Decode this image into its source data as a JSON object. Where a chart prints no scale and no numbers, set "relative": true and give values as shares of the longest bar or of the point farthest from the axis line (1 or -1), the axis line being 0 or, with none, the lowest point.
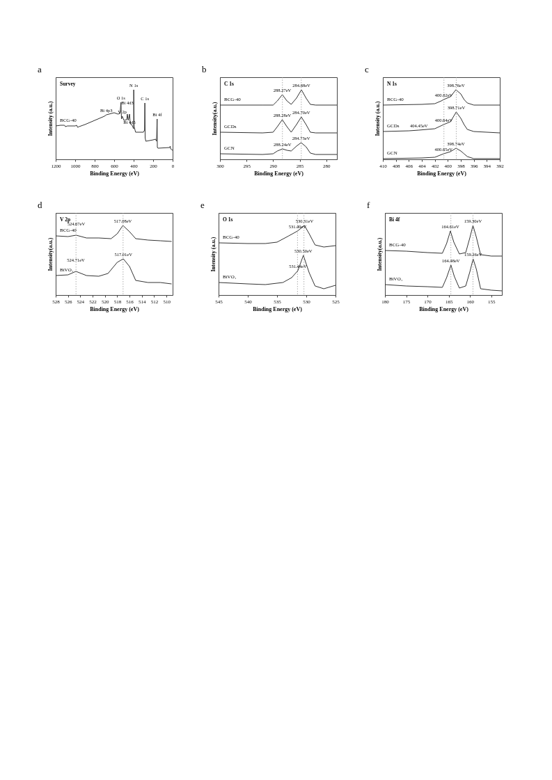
{
  "chart_data": [
    {
      "type": "line",
      "title": "a",
      "subtitle": "Survey",
      "xlabel": "Binding Energy (eV)",
      "ylabel": "Intensity (a.u.)",
      "relative": true,
      "xlim": [
        1200,
        0
      ],
      "xticks": [
        1200,
        1000,
        800,
        600,
        400,
        200,
        0
      ],
      "x": [
        1200,
        1150,
        1110,
        1100,
        1080,
        1000,
        985,
        975,
        960,
        900,
        800,
        700,
        680,
        600,
        560,
        540,
        530,
        525,
        517,
        500,
        470,
        465,
        455,
        442,
        435,
        420,
        400,
        399,
        395,
        380,
        300,
        288,
        285,
        282,
        275,
        200,
        175,
        165,
        159,
        157,
        150,
        30,
        25,
        20,
        0
      ],
      "series": [
        {
          "name": "BCG-40",
          "color": "#333333",
          "values": [
            0.48,
            0.49,
            0.49,
            0.47,
            0.48,
            0.48,
            0.49,
            0.46,
            0.47,
            0.5,
            0.56,
            0.62,
            0.64,
            0.67,
            0.65,
            0.66,
            0.82,
            0.58,
            0.62,
            0.56,
            0.57,
            0.65,
            0.56,
            0.65,
            0.51,
            0.5,
            0.44,
            1.0,
            0.47,
            0.39,
            0.39,
            0.42,
            0.81,
            0.31,
            0.26,
            0.28,
            0.29,
            0.26,
            0.58,
            0.17,
            0.16,
            0.17,
            0.19,
            0.15,
            0.13
          ]
        }
      ],
      "annotations": [
        {
          "text": "Bi 4p3",
          "x": 680,
          "y": 0.64
        },
        {
          "text": "O 1s",
          "x": 530,
          "y": 0.82
        },
        {
          "text": "V 2p",
          "x": 517,
          "y": 0.62
        },
        {
          "text": "Bi 4d3",
          "x": 465,
          "y": 0.65
        },
        {
          "text": "Bi 4d5",
          "x": 442,
          "y": 0.65
        },
        {
          "text": "N 1s",
          "x": 399,
          "y": 1.0
        },
        {
          "text": "C 1s",
          "x": 285,
          "y": 0.81
        },
        {
          "text": "Bi 4f",
          "x": 159,
          "y": 0.58
        }
      ]
    },
    {
      "type": "line",
      "title": "b",
      "subtitle": "C 1s",
      "xlabel": "Binding Energy (eV)",
      "ylabel": "Intensity(a.u.)",
      "relative": true,
      "xlim": [
        300,
        278
      ],
      "xticks": [
        300,
        295,
        290,
        285,
        280
      ],
      "series": [
        {
          "name": "BCG-40",
          "color": "#333333",
          "x": [
            300,
            292,
            290,
            289.2,
            288.27,
            287.4,
            286.6,
            285.6,
            284.68,
            283.8,
            283,
            282,
            278
          ],
          "values": [
            0.78,
            0.78,
            0.78,
            0.84,
            0.93,
            0.84,
            0.79,
            0.88,
            1.0,
            0.88,
            0.79,
            0.78,
            0.78
          ]
        },
        {
          "name": "GCDs",
          "color": "#333333",
          "x": [
            300,
            292,
            290,
            289.2,
            288.28,
            287.4,
            286.6,
            285.6,
            284.7,
            283.8,
            283,
            282,
            278
          ],
          "values": [
            0.39,
            0.38,
            0.39,
            0.47,
            0.57,
            0.47,
            0.39,
            0.5,
            0.61,
            0.5,
            0.39,
            0.38,
            0.38
          ]
        },
        {
          "name": "GCN",
          "color": "#333333",
          "x": [
            300,
            292,
            290,
            289.2,
            288.24,
            287.4,
            286.6,
            285.6,
            284.73,
            283.8,
            283,
            282,
            278
          ],
          "values": [
            0.08,
            0.07,
            0.08,
            0.12,
            0.15,
            0.13,
            0.12,
            0.19,
            0.24,
            0.18,
            0.09,
            0.07,
            0.07
          ]
        }
      ],
      "ref_lines": [
        {
          "axis": "x",
          "value": 288.25,
          "color": "#999999",
          "line_style": "dotted"
        },
        {
          "axis": "x",
          "value": 284.7,
          "color": "#999999",
          "line_style": "dotted"
        }
      ],
      "annotations": [
        {
          "text": "288.27eV",
          "x": 288.27,
          "y": 0.93
        },
        {
          "text": "284.68eV",
          "x": 284.68,
          "y": 1.0
        },
        {
          "text": "288.28eV",
          "x": 288.28,
          "y": 0.57
        },
        {
          "text": "284.70eV",
          "x": 284.7,
          "y": 0.61
        },
        {
          "text": "288.24eV",
          "x": 288.24,
          "y": 0.15
        },
        {
          "text": "284.73eV",
          "x": 284.73,
          "y": 0.24
        }
      ]
    },
    {
      "type": "line",
      "title": "c",
      "subtitle": "N 1s",
      "xlabel": "Binding Energy (eV)",
      "ylabel": "Intensity (a.u.)",
      "relative": true,
      "xlim": [
        410,
        392
      ],
      "xticks": [
        410,
        408,
        406,
        404,
        402,
        400,
        398,
        396,
        394,
        392
      ],
      "series": [
        {
          "name": "BCG-40",
          "color": "#333333",
          "x": [
            410,
            404,
            402,
            401,
            400.62,
            399.6,
            398.76,
            398,
            397.5,
            397,
            396,
            392
          ],
          "values": [
            0.78,
            0.79,
            0.8,
            0.84,
            0.86,
            0.9,
            1.0,
            0.94,
            0.86,
            0.81,
            0.78,
            0.78
          ]
        },
        {
          "name": "GCDs",
          "color": "#333333",
          "x": [
            410,
            406,
            404.45,
            402,
            400.64,
            399.6,
            398.71,
            398,
            397.5,
            397,
            396,
            392
          ],
          "values": [
            0.4,
            0.41,
            0.42,
            0.44,
            0.5,
            0.54,
            0.68,
            0.59,
            0.5,
            0.43,
            0.4,
            0.38
          ]
        },
        {
          "name": "GCN",
          "color": "#333333",
          "x": [
            410,
            404,
            402,
            400.65,
            399.6,
            398.74,
            398,
            397.5,
            397,
            396,
            392
          ],
          "values": [
            0.01,
            0.02,
            0.03,
            0.08,
            0.11,
            0.16,
            0.12,
            0.08,
            0.04,
            0.01,
            0.01
          ]
        }
      ],
      "ref_lines": [
        {
          "axis": "x",
          "value": 400.6,
          "color": "#999999",
          "line_style": "dotted"
        },
        {
          "axis": "x",
          "value": 398.7,
          "color": "#999999",
          "line_style": "dotted"
        }
      ],
      "annotations": [
        {
          "text": "400.62eV",
          "x": 400.62,
          "y": 0.86
        },
        {
          "text": "398.76eV",
          "x": 398.76,
          "y": 1.0
        },
        {
          "text": "404.45eV",
          "x": 404.45,
          "y": 0.42
        },
        {
          "text": "400.64eV",
          "x": 400.64,
          "y": 0.5
        },
        {
          "text": "398.71eV",
          "x": 398.71,
          "y": 0.68
        },
        {
          "text": "400.65eV",
          "x": 400.65,
          "y": 0.08
        },
        {
          "text": "398.74eV",
          "x": 398.74,
          "y": 0.16
        }
      ]
    },
    {
      "type": "line",
      "title": "d",
      "subtitle": "V 2p",
      "xlabel": "Binding Energy (eV)",
      "ylabel": "Intensity(a.u.)",
      "relative": true,
      "xlim": [
        528,
        509
      ],
      "xticks": [
        528,
        526,
        524,
        522,
        520,
        518,
        516,
        514,
        512,
        510
      ],
      "series": [
        {
          "name": "BCG-40",
          "color": "#333333",
          "x": [
            528,
            526,
            524.67,
            523,
            521,
            519,
            518,
            517.08,
            516,
            515,
            513,
            511,
            509.2
          ],
          "values": [
            0.85,
            0.84,
            0.86,
            0.82,
            0.82,
            0.81,
            0.88,
            1.0,
            0.91,
            0.81,
            0.79,
            0.78,
            0.77
          ]
        },
        {
          "name": "BiVO₄",
          "color": "#333333",
          "x": [
            528,
            526,
            524.71,
            523,
            521,
            519.5,
            518,
            517.01,
            516,
            515,
            513,
            511,
            509.2
          ],
          "values": [
            0.28,
            0.29,
            0.34,
            0.28,
            0.27,
            0.31,
            0.47,
            0.52,
            0.41,
            0.21,
            0.18,
            0.18,
            0.16
          ]
        }
      ],
      "ref_lines": [
        {
          "axis": "x",
          "value": 524.7,
          "color": "#999999",
          "line_style": "dotted"
        },
        {
          "axis": "x",
          "value": 517.05,
          "color": "#999999",
          "line_style": "dotted"
        }
      ],
      "annotations": [
        {
          "text": "524.67eV",
          "x": 524.67,
          "y": 0.86
        },
        {
          "text": "517.08eV",
          "x": 517.08,
          "y": 1.0
        },
        {
          "text": "524.71eV",
          "x": 524.71,
          "y": 0.34
        },
        {
          "text": "517.01eV",
          "x": 517.01,
          "y": 0.52
        }
      ]
    },
    {
      "type": "line",
      "title": "e",
      "subtitle": "O 1s",
      "xlabel": "Binding Energy (eV)",
      "ylabel": "Intensity (a.u.)",
      "relative": true,
      "xlim": [
        545,
        525
      ],
      "xticks": [
        545,
        540,
        535,
        530,
        525
      ],
      "series": [
        {
          "name": "BCG-40",
          "color": "#333333",
          "x": [
            545,
            540,
            537,
            535,
            533,
            531.49,
            530.31,
            529.5,
            528.5,
            527,
            525
          ],
          "values": [
            0.75,
            0.74,
            0.74,
            0.76,
            0.85,
            0.92,
            1.0,
            0.88,
            0.72,
            0.69,
            0.71
          ]
        },
        {
          "name": "BiVO₄",
          "color": "#333333",
          "x": [
            545,
            540,
            537,
            534,
            532.5,
            531.44,
            530.5,
            529.5,
            528.5,
            527,
            525
          ],
          "values": [
            0.18,
            0.16,
            0.15,
            0.18,
            0.25,
            0.35,
            0.57,
            0.32,
            0.13,
            0.09,
            0.14
          ]
        }
      ],
      "ref_lines": [
        {
          "axis": "x",
          "value": 531.5,
          "color": "#999999",
          "line_style": "dotted"
        },
        {
          "axis": "x",
          "value": 530.4,
          "color": "#999999",
          "line_style": "dotted"
        }
      ],
      "annotations": [
        {
          "text": "531.49eV",
          "x": 531.49,
          "y": 0.92
        },
        {
          "text": "530.31eV",
          "x": 530.31,
          "y": 1.0
        },
        {
          "text": "531.44eV",
          "x": 531.44,
          "y": 0.35
        },
        {
          "text": "530.50eV",
          "x": 530.5,
          "y": 0.57
        }
      ]
    },
    {
      "type": "line",
      "title": "f",
      "subtitle": "Bi 4f",
      "xlabel": "Binding Energy (eV)",
      "ylabel": "Intensity(a.u.)",
      "relative": true,
      "xlim": [
        180,
        152.5
      ],
      "xticks": [
        180,
        175,
        170,
        165,
        160,
        155
      ],
      "series": [
        {
          "name": "BCG-40",
          "color": "#333333",
          "x": [
            180,
            175,
            170,
            166.5,
            165.5,
            164.61,
            163.8,
            162.5,
            161,
            160,
            159.3,
            158.5,
            157.5,
            155,
            152.5
          ],
          "values": [
            0.64,
            0.63,
            0.61,
            0.6,
            0.74,
            0.92,
            0.76,
            0.59,
            0.61,
            0.83,
            1.0,
            0.83,
            0.58,
            0.56,
            0.56
          ]
        },
        {
          "name": "BiVO₄",
          "color": "#333333",
          "x": [
            180,
            175,
            170,
            166.5,
            165.5,
            164.48,
            163.7,
            162.5,
            161,
            160,
            159.26,
            158.5,
            157.5,
            155,
            152.5
          ],
          "values": [
            0.15,
            0.13,
            0.12,
            0.11,
            0.25,
            0.43,
            0.27,
            0.1,
            0.13,
            0.34,
            0.52,
            0.37,
            0.09,
            0.07,
            0.06
          ]
        }
      ],
      "ref_lines": [
        {
          "axis": "x",
          "value": 164.5,
          "color": "#999999",
          "line_style": "dotted"
        },
        {
          "axis": "x",
          "value": 159.3,
          "color": "#999999",
          "line_style": "dotted"
        }
      ],
      "annotations": [
        {
          "text": "164.61eV",
          "x": 164.61,
          "y": 0.92
        },
        {
          "text": "159.30eV",
          "x": 159.3,
          "y": 1.0
        },
        {
          "text": "164.48eV",
          "x": 164.48,
          "y": 0.43
        },
        {
          "text": "159.26eV",
          "x": 159.26,
          "y": 0.52
        }
      ]
    }
  ]
}
